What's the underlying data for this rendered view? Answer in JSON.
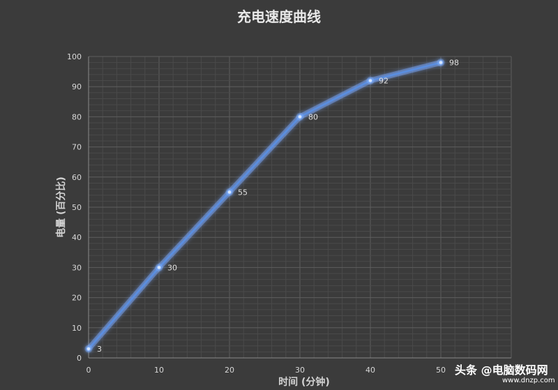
{
  "chart_data": {
    "type": "line",
    "title": "充电速度曲线",
    "xlabel": "时间 (分钟)",
    "ylabel": "电量 (百分比)",
    "x": [
      0,
      10,
      20,
      30,
      40,
      50
    ],
    "y": [
      3,
      30,
      55,
      80,
      92,
      98
    ],
    "data_labels": [
      "3",
      "30",
      "55",
      "80",
      "92",
      "98"
    ],
    "x_ticks": [
      0,
      10,
      20,
      30,
      40,
      50
    ],
    "y_ticks": [
      0,
      10,
      20,
      30,
      40,
      50,
      60,
      70,
      80,
      90,
      100
    ],
    "x_tick_labels": [
      "0",
      "10",
      "20",
      "30",
      "40",
      "50"
    ],
    "y_tick_labels": [
      "0",
      "10",
      "20",
      "30",
      "40",
      "50",
      "60",
      "70",
      "80",
      "90",
      "100"
    ],
    "xlim": [
      0,
      60
    ],
    "ylim": [
      0,
      100
    ],
    "grid": true,
    "line_color": "#5a8ee0",
    "background_color": "#3b3b3b"
  },
  "watermark": {
    "main": "头条 @电脑数码网",
    "sub": "www.dnzp.com"
  }
}
